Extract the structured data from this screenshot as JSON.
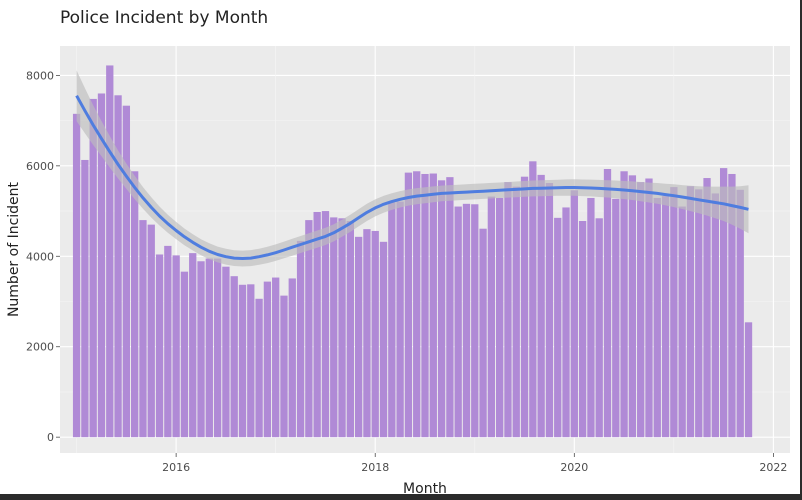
{
  "chart_data": {
    "type": "bar",
    "title": "Police Incident by Month",
    "xlabel": "Month",
    "ylabel": "Number of Incident",
    "x_start": "2015-01",
    "x_ticks": [
      "2016",
      "2018",
      "2020",
      "2022"
    ],
    "y_ticks": [
      "0",
      "2000",
      "4000",
      "6000",
      "8000"
    ],
    "xlim": [
      "2014-11",
      "2022-03"
    ],
    "ylim": [
      -350,
      8650
    ],
    "grid": true,
    "bar_color": "#b08ad6",
    "smooth_color": "#4f7ddf",
    "band_color": "#bdbdbd",
    "panel_color": "#ebebeb",
    "values": [
      7150,
      6130,
      7480,
      7600,
      8220,
      7560,
      7330,
      5880,
      4800,
      4700,
      4040,
      4230,
      4020,
      3660,
      4070,
      3890,
      3950,
      3950,
      3770,
      3560,
      3370,
      3380,
      3060,
      3440,
      3530,
      3130,
      3510,
      4340,
      4800,
      4980,
      5000,
      4860,
      4840,
      4780,
      4430,
      4600,
      4560,
      4320,
      5190,
      5210,
      5850,
      5880,
      5820,
      5830,
      5680,
      5750,
      5100,
      5160,
      5150,
      4610,
      5320,
      5290,
      5640,
      5540,
      5760,
      6100,
      5800,
      5620,
      4850,
      5080,
      5460,
      4780,
      5290,
      4840,
      5930,
      5270,
      5880,
      5790,
      5640,
      5720,
      5290,
      5330,
      5530,
      5100,
      5550,
      5480,
      5730,
      5390,
      5950,
      5820,
      5470,
      2540
    ],
    "smooth_fit": [
      7550,
      7220,
      6900,
      6600,
      6310,
      6030,
      5770,
      5520,
      5290,
      5080,
      4890,
      4720,
      4570,
      4430,
      4310,
      4200,
      4110,
      4040,
      3990,
      3960,
      3950,
      3960,
      3990,
      4030,
      4080,
      4140,
      4200,
      4260,
      4320,
      4380,
      4440,
      4520,
      4620,
      4730,
      4850,
      4970,
      5070,
      5150,
      5210,
      5260,
      5300,
      5330,
      5350,
      5370,
      5390,
      5400,
      5410,
      5420,
      5430,
      5440,
      5450,
      5460,
      5470,
      5480,
      5490,
      5500,
      5505,
      5510,
      5515,
      5520,
      5520,
      5515,
      5510,
      5500,
      5490,
      5480,
      5465,
      5450,
      5430,
      5410,
      5390,
      5365,
      5340,
      5310,
      5280,
      5250,
      5220,
      5190,
      5160,
      5120,
      5080,
      5040
    ],
    "band_halfwidth": [
      560,
      500,
      440,
      390,
      350,
      310,
      280,
      260,
      240,
      225,
      210,
      200,
      190,
      185,
      180,
      178,
      176,
      175,
      175,
      175,
      175,
      176,
      178,
      180,
      182,
      184,
      186,
      188,
      190,
      190,
      190,
      190,
      190,
      190,
      190,
      190,
      188,
      186,
      184,
      182,
      180,
      178,
      176,
      175,
      174,
      173,
      172,
      172,
      172,
      172,
      172,
      172,
      172,
      173,
      174,
      175,
      176,
      177,
      178,
      180,
      182,
      184,
      186,
      188,
      190,
      195,
      200,
      205,
      212,
      220,
      230,
      240,
      252,
      265,
      280,
      300,
      320,
      350,
      380,
      420,
      470,
      530
    ]
  }
}
